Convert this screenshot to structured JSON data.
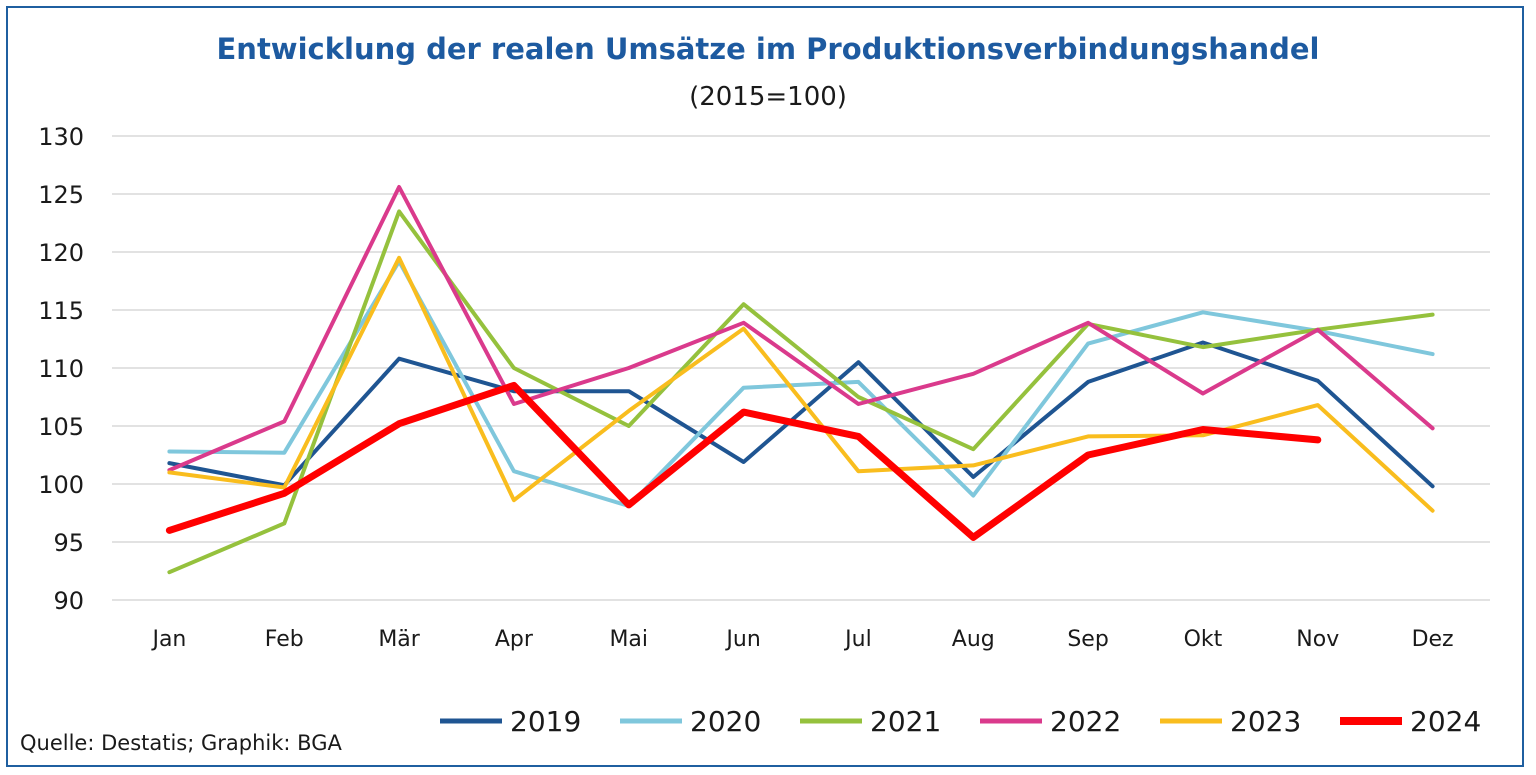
{
  "chart_data": {
    "type": "line",
    "title": "Entwicklung der realen Umsätze im Produktionsverbindungshandel",
    "subtitle": "(2015=100)",
    "categories": [
      "Jan",
      "Feb",
      "Mär",
      "Apr",
      "Mai",
      "Jun",
      "Jul",
      "Aug",
      "Sep",
      "Okt",
      "Nov",
      "Dez"
    ],
    "ylim": [
      90,
      130
    ],
    "yticks": [
      90,
      95,
      100,
      105,
      110,
      115,
      120,
      125,
      130
    ],
    "grid": true,
    "legend_position": "bottom",
    "series": [
      {
        "name": "2019",
        "color": "#1f5592",
        "values": [
          101.8,
          99.9,
          110.8,
          108.0,
          108.0,
          101.9,
          110.5,
          100.6,
          108.8,
          112.2,
          108.9,
          99.8
        ]
      },
      {
        "name": "2020",
        "color": "#7fc7dc",
        "values": [
          102.8,
          102.7,
          119.2,
          101.1,
          98.1,
          108.3,
          108.8,
          99.0,
          112.1,
          114.8,
          113.2,
          111.2
        ]
      },
      {
        "name": "2021",
        "color": "#95c13d",
        "values": [
          92.4,
          96.6,
          123.5,
          110.0,
          105.0,
          115.5,
          107.5,
          103.0,
          113.8,
          111.8,
          113.3,
          114.6
        ]
      },
      {
        "name": "2022",
        "color": "#da3a8c",
        "values": [
          101.2,
          105.4,
          125.6,
          106.9,
          110.0,
          113.9,
          106.9,
          109.5,
          113.9,
          107.8,
          113.3,
          104.8
        ]
      },
      {
        "name": "2023",
        "color": "#f9bd1e",
        "values": [
          101.0,
          99.7,
          119.5,
          98.6,
          106.3,
          113.4,
          101.1,
          101.6,
          104.1,
          104.2,
          106.8,
          97.7
        ]
      },
      {
        "name": "2024",
        "color": "#ff0000",
        "values": [
          96.0,
          99.2,
          105.2,
          108.5,
          98.2,
          106.2,
          104.1,
          95.4,
          102.5,
          104.7,
          103.8,
          null
        ]
      }
    ]
  },
  "source_text": "Quelle: Destatis; Graphik: BGA"
}
